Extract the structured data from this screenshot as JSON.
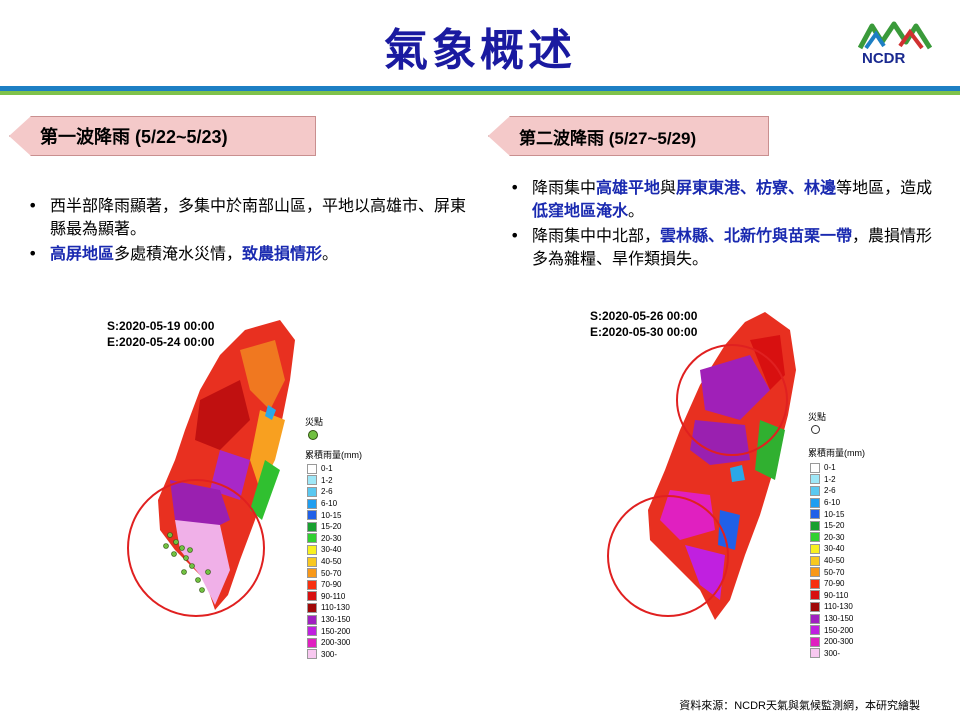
{
  "header": {
    "title": "氣象概述",
    "logo_text": "NCDR"
  },
  "wave1": {
    "label": "第一波降雨 (5/22~5/23)",
    "bullets": [
      {
        "parts": [
          {
            "t": "西半部降雨顯著，多集中於南部山區，平地以高雄市、屏東縣最為顯著。",
            "b": false
          }
        ]
      },
      {
        "parts": [
          {
            "t": "高屏地區",
            "b": true
          },
          {
            "t": "多處積淹水災情，",
            "b": false
          },
          {
            "t": "致農損情形",
            "b": true
          },
          {
            "t": "。",
            "b": false
          }
        ]
      }
    ],
    "start": "S:2020-05-19 00:00",
    "end": "E:2020-05-24 00:00",
    "point_label": "災點"
  },
  "wave2": {
    "label": "第二波降雨 (5/27~5/29)",
    "bullets": [
      {
        "parts": [
          {
            "t": "降雨集中",
            "b": false
          },
          {
            "t": "高雄平地",
            "b": true
          },
          {
            "t": "與",
            "b": false
          },
          {
            "t": "屏東東港、枋寮、林邊",
            "b": true
          },
          {
            "t": "等地區，造成",
            "b": false
          },
          {
            "t": "低窪地區淹水",
            "b": true
          },
          {
            "t": "。",
            "b": false
          }
        ]
      },
      {
        "parts": [
          {
            "t": "降雨集中中北部，",
            "b": false
          },
          {
            "t": "雲林縣、北新竹與苗栗一帶",
            "b": true
          },
          {
            "t": "，農損情形多為雜糧、旱作類損失。",
            "b": false
          }
        ]
      }
    ],
    "start": "S:2020-05-26 00:00",
    "end": "E:2020-05-30 00:00",
    "point_label": "災點"
  },
  "legend": {
    "title": "累積雨量(mm)",
    "items": [
      {
        "label": "0-1",
        "color": "#ffffff"
      },
      {
        "label": "1-2",
        "color": "#9ee7f7"
      },
      {
        "label": "2-6",
        "color": "#5ac8f0"
      },
      {
        "label": "6-10",
        "color": "#1f9ef0"
      },
      {
        "label": "10-15",
        "color": "#2060e8"
      },
      {
        "label": "15-20",
        "color": "#18a030"
      },
      {
        "label": "20-30",
        "color": "#30d030"
      },
      {
        "label": "30-40",
        "color": "#f8f020"
      },
      {
        "label": "40-50",
        "color": "#f8c820"
      },
      {
        "label": "50-70",
        "color": "#f89818"
      },
      {
        "label": "70-90",
        "color": "#f83010"
      },
      {
        "label": "90-110",
        "color": "#d81010"
      },
      {
        "label": "110-130",
        "color": "#a00808"
      },
      {
        "label": "130-150",
        "color": "#a020c0"
      },
      {
        "label": "150-200",
        "color": "#c020e0"
      },
      {
        "label": "200-300",
        "color": "#e020c0"
      },
      {
        "label": "300-",
        "color": "#f8c8f0"
      }
    ]
  },
  "source": "資料來源：NCDR天氣與氣候監測網，本研究繪製"
}
